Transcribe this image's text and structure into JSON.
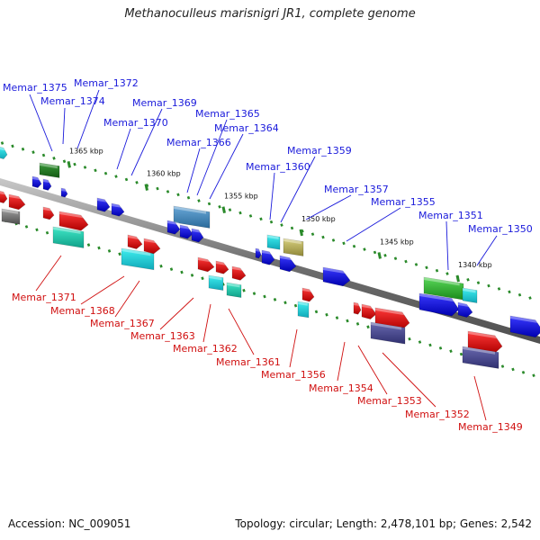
{
  "title": "Methanoculleus marisnigri JR1, complete genome",
  "footer": {
    "accession": "Accession: NC_009051",
    "topology": "Topology: circular; Length: 2,478,101 bp; Genes: 2,542"
  },
  "colors": {
    "backbone": "#808080",
    "forward_label": "#1a1adb",
    "reverse_label": "#d01010",
    "tick": "#2a8a2a"
  },
  "scale_labels": [
    "1365 kbp",
    "1360 kbp",
    "1355 kbp",
    "1350 kbp",
    "1345 kbp",
    "1340 kbp"
  ],
  "genes_top": [
    "Memar_1375",
    "Memar_1374",
    "Memar_1372",
    "Memar_1370",
    "Memar_1369",
    "Memar_1366",
    "Memar_1365",
    "Memar_1364",
    "Memar_1360",
    "Memar_1359",
    "Memar_1357",
    "Memar_1355",
    "Memar_1351",
    "Memar_1350"
  ],
  "genes_bottom": [
    "Memar_1371",
    "Memar_1368",
    "Memar_1367",
    "Memar_1363",
    "Memar_1362",
    "Memar_1361",
    "Memar_1356",
    "Memar_1354",
    "Memar_1353",
    "Memar_1352",
    "Memar_1349"
  ]
}
